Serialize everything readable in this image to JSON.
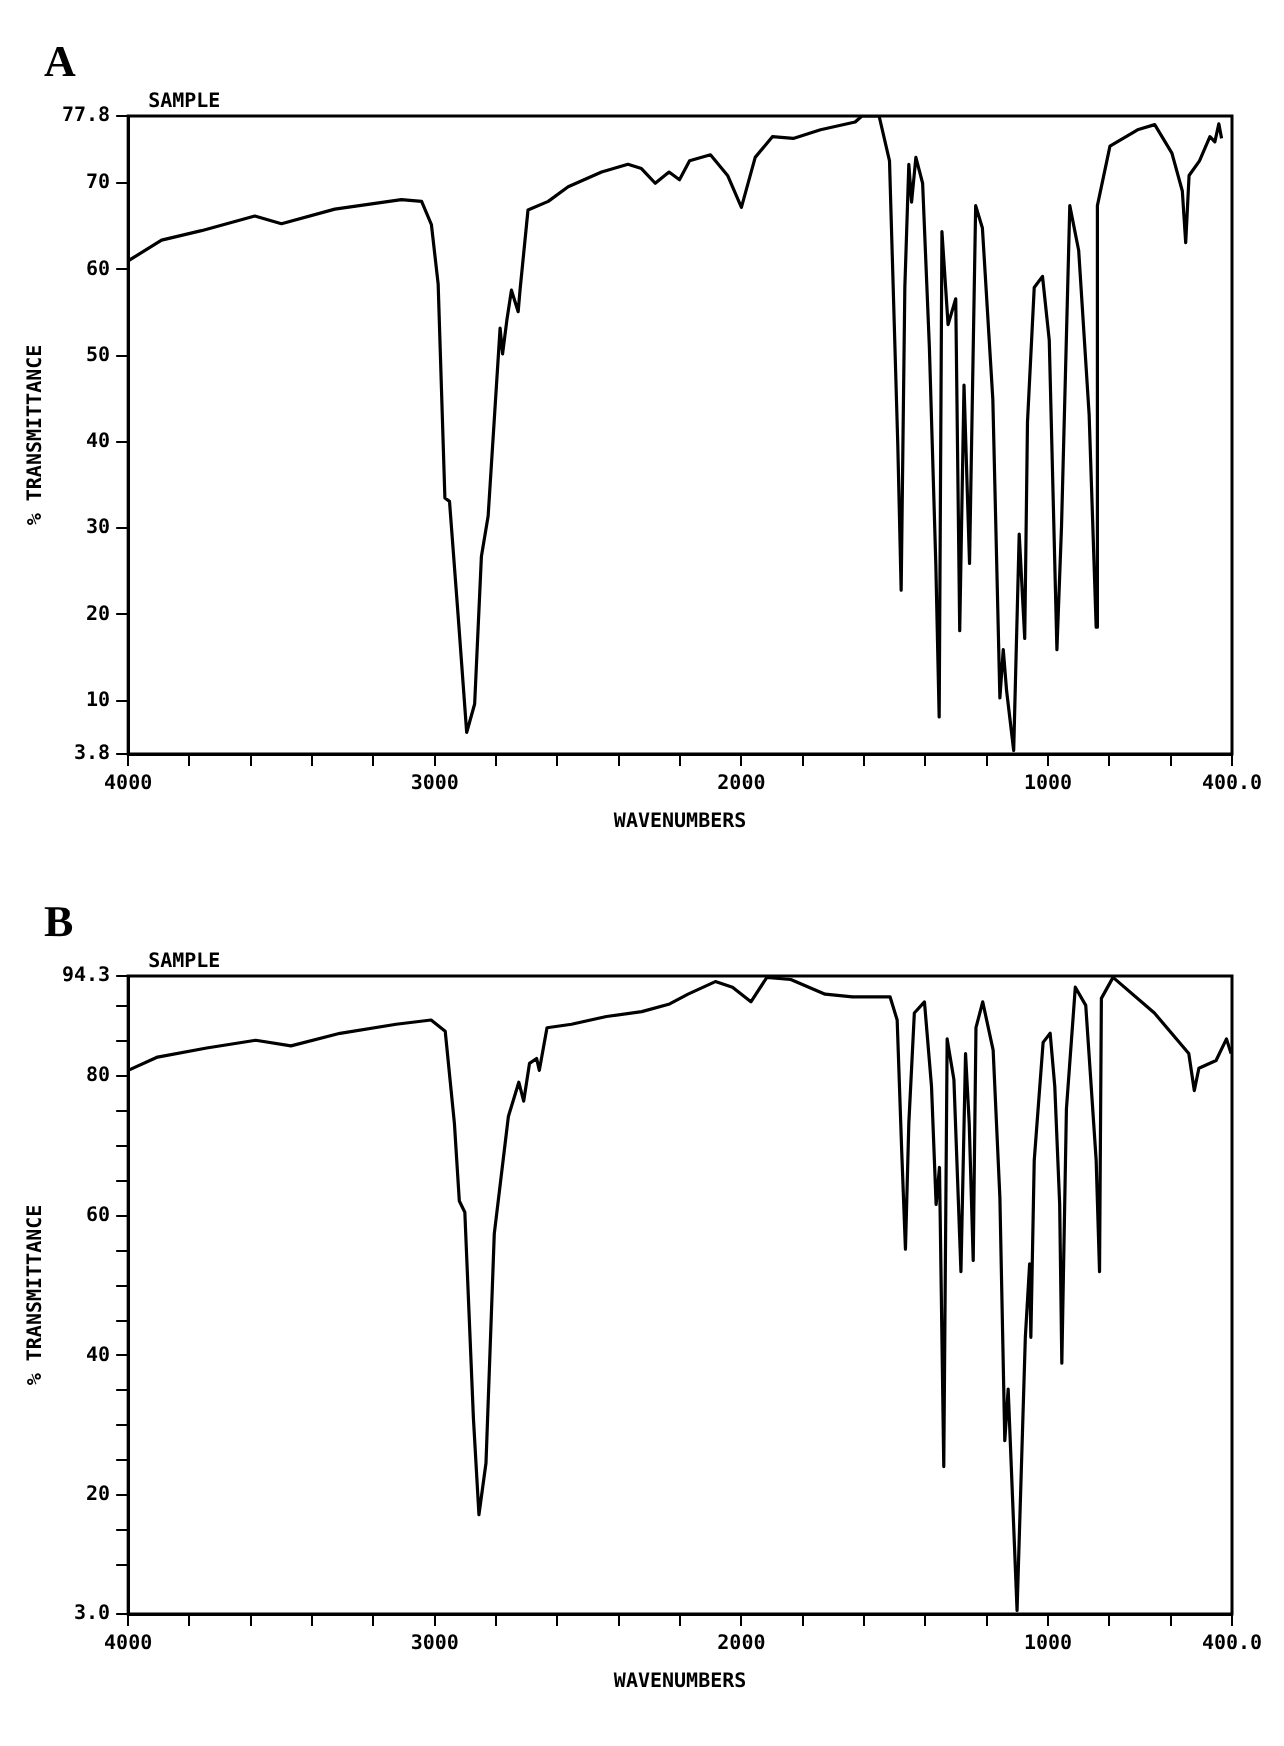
{
  "chart_data": [
    {
      "type": "line",
      "title": "A",
      "subtitle": "SAMPLE",
      "xlabel": "WAVENUMBERS",
      "ylabel": "% TRANSMITTANCE",
      "color": "#000000",
      "x": [
        4000,
        3891,
        3761,
        3587,
        3500,
        3326,
        3109,
        3043,
        3011,
        2989,
        2967,
        2952,
        2924,
        2896,
        2870,
        2848,
        2826,
        2787,
        2779,
        2765,
        2750,
        2728,
        2722,
        2696,
        2630,
        2565,
        2456,
        2370,
        2326,
        2281,
        2236,
        2202,
        2169,
        2101,
        2045,
        2000,
        1955,
        1899,
        1831,
        1742,
        1629,
        1607,
        1551,
        1517,
        1490,
        1479,
        1467,
        1454,
        1445,
        1431,
        1409,
        1387,
        1366,
        1355,
        1346,
        1326,
        1301,
        1288,
        1274,
        1256,
        1236,
        1214,
        1180,
        1157,
        1146,
        1135,
        1112,
        1094,
        1076,
        1067,
        1045,
        1018,
        996,
        971,
        956,
        929,
        900,
        866,
        843,
        839,
        798,
        708,
        652,
        596,
        562,
        551,
        540,
        506,
        472,
        456,
        443,
        434
      ],
      "values": [
        61,
        63.4,
        64.5,
        66.2,
        65.3,
        67,
        68.1,
        67.9,
        65.2,
        58.3,
        33.5,
        33.1,
        19.9,
        6.3,
        9.6,
        26.7,
        31.4,
        53.2,
        50.2,
        54.1,
        57.6,
        55.1,
        57.6,
        66.9,
        67.9,
        69.6,
        71.3,
        72.2,
        71.7,
        70,
        71.3,
        70.4,
        72.6,
        73.3,
        70.9,
        67.2,
        73,
        75.4,
        75.2,
        76.2,
        77.1,
        77.8,
        77.8,
        72.6,
        39.7,
        22.8,
        57.9,
        72.2,
        67.8,
        73,
        70,
        51,
        25.9,
        8.1,
        64.4,
        53.6,
        56.6,
        18.1,
        46.6,
        25.9,
        67.4,
        64.8,
        44.9,
        10.3,
        15.9,
        11.1,
        4.2,
        29.3,
        17.2,
        42.3,
        57.9,
        59.2,
        51.8,
        15.9,
        30.2,
        67.4,
        62.2,
        43.2,
        18.5,
        67.4,
        74.3,
        76.2,
        76.8,
        73.5,
        69.1,
        63.1,
        70.9,
        72.6,
        75.4,
        74.8,
        76.9,
        75.2
      ],
      "xlim": [
        4000,
        400
      ],
      "xticks": [
        4000,
        {
          "value": 3800,
          "label": null
        },
        {
          "value": 3600,
          "label": null
        },
        {
          "value": 3400,
          "label": null
        },
        {
          "value": 3200,
          "label": null
        },
        3000,
        {
          "value": 2800,
          "label": null
        },
        {
          "value": 2600,
          "label": null
        },
        {
          "value": 2400,
          "label": null
        },
        {
          "value": 2200,
          "label": null
        },
        2000,
        {
          "value": 1800,
          "label": null
        },
        {
          "value": 1600,
          "label": null
        },
        {
          "value": 1400,
          "label": null
        },
        {
          "value": 1200,
          "label": null
        },
        1000,
        {
          "value": 800,
          "label": null
        },
        {
          "value": 600,
          "label": null
        },
        {
          "value": 400,
          "label": "400.0"
        }
      ],
      "ylim": [
        3.8,
        77.8
      ],
      "yticks": [
        3.8,
        10,
        20,
        30,
        40,
        50,
        60,
        70,
        77.8
      ]
    },
    {
      "type": "line",
      "title": "B",
      "subtitle": "SAMPLE",
      "xlabel": "WAVENUMBERS",
      "ylabel": "% TRANSMITTANCE",
      "color": "#000000",
      "x": [
        4000,
        3904,
        3744,
        3584,
        3469,
        3309,
        3126,
        3012,
        2966,
        2936,
        2920,
        2902,
        2874,
        2856,
        2833,
        2806,
        2760,
        2726,
        2710,
        2691,
        2668,
        2659,
        2634,
        2554,
        2440,
        2325,
        2234,
        2174,
        2085,
        2029,
        1969,
        1917,
        1839,
        1727,
        1638,
        1515,
        1492,
        1477,
        1465,
        1454,
        1436,
        1403,
        1380,
        1365,
        1354,
        1340,
        1329,
        1307,
        1284,
        1269,
        1257,
        1244,
        1235,
        1213,
        1179,
        1157,
        1141,
        1130,
        1101,
        1074,
        1060,
        1056,
        1045,
        1016,
        993,
        978,
        962,
        955,
        940,
        911,
        877,
        843,
        832,
        826,
        788,
        653,
        541,
        523,
        508,
        452,
        418,
        403
      ],
      "values": [
        80.8,
        82.7,
        84,
        85.1,
        84.3,
        86.1,
        87.4,
        88,
        86.4,
        73.2,
        62.1,
        60.5,
        31,
        17.2,
        24.6,
        57.4,
        74.2,
        79.1,
        76.4,
        81.8,
        82.5,
        80.8,
        86.9,
        87.4,
        88.5,
        89.2,
        90.3,
        91.7,
        93.5,
        92.7,
        90.6,
        94.1,
        93.8,
        91.7,
        91.3,
        91.3,
        88,
        69,
        55.2,
        73.2,
        89,
        90.6,
        78.5,
        61.6,
        66.9,
        24.1,
        85.3,
        79.5,
        52,
        83.2,
        73.2,
        53.6,
        86.9,
        90.6,
        83.7,
        62.6,
        27.8,
        35.2,
        3.5,
        42.6,
        53.1,
        42.6,
        67.9,
        84.8,
        86.1,
        78.5,
        61.6,
        38.9,
        75.3,
        92.7,
        90.1,
        67.9,
        52,
        91.1,
        94.1,
        89,
        83.2,
        77.9,
        81.1,
        82.2,
        85.3,
        83.2
      ],
      "xlim": [
        4000,
        400
      ],
      "xticks": [
        4000,
        {
          "value": 3800,
          "label": null
        },
        {
          "value": 3600,
          "label": null
        },
        {
          "value": 3400,
          "label": null
        },
        {
          "value": 3200,
          "label": null
        },
        3000,
        {
          "value": 2800,
          "label": null
        },
        {
          "value": 2600,
          "label": null
        },
        {
          "value": 2400,
          "label": null
        },
        {
          "value": 2200,
          "label": null
        },
        2000,
        {
          "value": 1800,
          "label": null
        },
        {
          "value": 1600,
          "label": null
        },
        {
          "value": 1400,
          "label": null
        },
        {
          "value": 1200,
          "label": null
        },
        1000,
        {
          "value": 800,
          "label": null
        },
        {
          "value": 600,
          "label": null
        },
        {
          "value": 400,
          "label": "400.0"
        }
      ],
      "ylim": [
        3,
        94.3
      ],
      "yticks": [
        {
          "value": 3,
          "label": "3.0"
        },
        {
          "value": 10,
          "label": null
        },
        {
          "value": 15,
          "label": null
        },
        20,
        {
          "value": 25,
          "label": null
        },
        {
          "value": 30,
          "label": null
        },
        {
          "value": 35,
          "label": null
        },
        40,
        {
          "value": 45,
          "label": null
        },
        {
          "value": 50,
          "label": null
        },
        {
          "value": 55,
          "label": null
        },
        60,
        {
          "value": 65,
          "label": null
        },
        {
          "value": 70,
          "label": null
        },
        {
          "value": 75,
          "label": null
        },
        80,
        {
          "value": 85,
          "label": null
        },
        {
          "value": 90,
          "label": null
        },
        94.3
      ]
    }
  ]
}
